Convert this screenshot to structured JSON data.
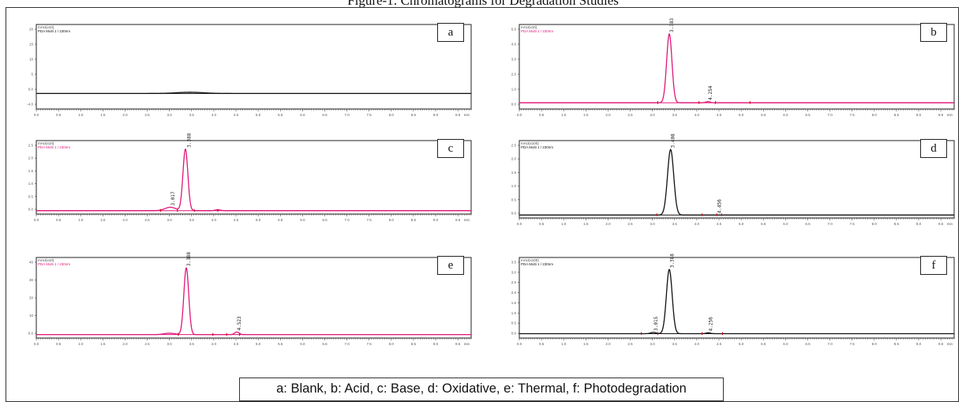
{
  "figure": {
    "title": "Figure-1: Chromatograms for Degradation Studies",
    "caption": "a: Blank, b: Acid, c: Base, d: Oxidative, e: Thermal, f: Photodegradation"
  },
  "colors": {
    "magenta": "#e0177a",
    "black": "#111111",
    "marker_red": "#d10a18"
  },
  "chart_data": [
    {
      "id": "a",
      "letter": "a",
      "type": "line",
      "color": "#111111",
      "x_label": "min",
      "xlim": [
        0,
        9.8
      ],
      "x_ticks": [
        "0.0",
        "0.5",
        "1.0",
        "1.5",
        "2.0",
        "2.5",
        "3.0",
        "3.5",
        "4.0",
        "4.5",
        "5.0",
        "5.5",
        "6.0",
        "6.5",
        "7.0",
        "7.5",
        "8.0",
        "8.5",
        "9.0",
        "9.5"
      ],
      "y_unit": "mAU(x10)",
      "detector": "PDA Multi 1 / 230nm",
      "ylim": [
        -4.5,
        20
      ],
      "y_ticks": [
        "20",
        "15",
        "10",
        "5",
        "0.0",
        "-4.0"
      ],
      "baseline": 0,
      "peaks": [
        {
          "rt": 3.46,
          "height": 0.35,
          "width": 0.3
        }
      ],
      "peak_labels": [],
      "markers": []
    },
    {
      "id": "b",
      "letter": "b",
      "type": "line",
      "color": "#e0177a",
      "x_label": "min",
      "xlim": [
        0,
        9.8
      ],
      "x_ticks": [
        "0.0",
        "0.5",
        "1.0",
        "1.5",
        "2.0",
        "2.5",
        "3.0",
        "3.5",
        "4.0",
        "4.5",
        "5.0",
        "5.5",
        "6.0",
        "6.5",
        "7.0",
        "7.5",
        "8.0",
        "8.5",
        "9.0",
        "9.5"
      ],
      "y_unit": "mAU(x10)",
      "detector": "PDA Multi 1 / 230nm",
      "ylim": [
        -0.4,
        5.0
      ],
      "y_ticks": [
        "5.0",
        "4.0",
        "3.0",
        "2.0",
        "1.0",
        "0.0"
      ],
      "baseline": 0,
      "peaks": [
        {
          "rt": 3.38,
          "height": 4.4,
          "width": 0.06
        },
        {
          "rt": 4.25,
          "height": 0.07,
          "width": 0.05
        }
      ],
      "peak_labels": [
        {
          "rt": 3.38,
          "text": "3.383"
        },
        {
          "rt": 4.25,
          "text": "4.254"
        }
      ],
      "markers": [
        3.12,
        4.05,
        4.42,
        5.2
      ]
    },
    {
      "id": "c",
      "letter": "c",
      "type": "line",
      "color": "#e0177a",
      "x_label": "min",
      "xlim": [
        0,
        9.8
      ],
      "x_ticks": [
        "0.0",
        "0.5",
        "1.0",
        "1.5",
        "2.0",
        "2.5",
        "3.0",
        "3.5",
        "4.0",
        "4.5",
        "5.0",
        "5.5",
        "6.0",
        "6.5",
        "7.0",
        "7.5",
        "8.0",
        "8.5",
        "9.0",
        "9.5"
      ],
      "y_unit": "mAU(x10)",
      "detector": "PDA Multi 1 / 230nm",
      "ylim": [
        -0.1,
        2.5
      ],
      "y_ticks": [
        "2.5",
        "2.0",
        "1.5",
        "1.0",
        "0.5",
        "0.0"
      ],
      "baseline": 0.02,
      "peaks": [
        {
          "rt": 3.02,
          "height": 0.12,
          "width": 0.12
        },
        {
          "rt": 3.36,
          "height": 2.18,
          "width": 0.055
        },
        {
          "rt": 4.09,
          "height": 0.03,
          "width": 0.06
        }
      ],
      "peak_labels": [
        {
          "rt": 3.02,
          "text": "3.017"
        },
        {
          "rt": 3.39,
          "text": "3.388"
        }
      ],
      "markers": [
        2.8,
        3.18,
        3.56,
        4.09
      ]
    },
    {
      "id": "d",
      "letter": "d",
      "type": "line",
      "color": "#111111",
      "x_label": "min",
      "xlim": [
        0,
        9.8
      ],
      "x_ticks": [
        "0.0",
        "0.5",
        "1.0",
        "1.5",
        "2.0",
        "2.5",
        "3.0",
        "3.5",
        "4.0",
        "4.5",
        "5.0",
        "5.5",
        "6.0",
        "6.5",
        "7.0",
        "7.5",
        "8.0",
        "8.5",
        "9.0",
        "9.5"
      ],
      "y_unit": "mAU(x100)",
      "detector": "PDA Multi 1 / 230nm",
      "ylim": [
        -0.1,
        2.5
      ],
      "y_ticks": [
        "2.5",
        "2.0",
        "1.5",
        "1.0",
        "0.5",
        "0.0"
      ],
      "baseline": 0,
      "peaks": [
        {
          "rt": 3.41,
          "height": 2.2,
          "width": 0.07
        }
      ],
      "peak_labels": [
        {
          "rt": 3.41,
          "text": "3.408"
        },
        {
          "rt": 4.46,
          "text": "4.456"
        }
      ],
      "markers": [
        3.1,
        4.12,
        4.45,
        4.56
      ]
    },
    {
      "id": "e",
      "letter": "e",
      "type": "line",
      "color": "#e0177a",
      "x_label": "min",
      "xlim": [
        0,
        9.8
      ],
      "x_ticks": [
        "0.0",
        "0.5",
        "1.0",
        "1.5",
        "2.0",
        "2.5",
        "3.0",
        "3.5",
        "4.0",
        "4.5",
        "5.0",
        "5.5",
        "6.0",
        "6.5",
        "7.0",
        "7.5",
        "8.0",
        "8.5",
        "9.0",
        "9.5"
      ],
      "y_unit": "mAU(x10)",
      "detector": "PDA Multi 1 / 230nm",
      "ylim": [
        -2,
        45
      ],
      "y_ticks": [
        "40",
        "30",
        "20",
        "10",
        "0.0"
      ],
      "baseline": 0,
      "peaks": [
        {
          "rt": 3.0,
          "height": 0.8,
          "width": 0.12
        },
        {
          "rt": 3.38,
          "height": 39,
          "width": 0.055
        },
        {
          "rt": 4.52,
          "height": 1.5,
          "width": 0.05
        }
      ],
      "peak_labels": [
        {
          "rt": 3.38,
          "text": "3.388"
        },
        {
          "rt": 4.52,
          "text": "4.523"
        }
      ],
      "markers": [
        3.2,
        3.98,
        4.29,
        4.58
      ]
    },
    {
      "id": "f",
      "letter": "f",
      "type": "line",
      "color": "#111111",
      "x_label": "min",
      "xlim": [
        0,
        9.8
      ],
      "x_ticks": [
        "0.0",
        "0.5",
        "1.0",
        "1.5",
        "2.0",
        "2.5",
        "3.0",
        "3.5",
        "4.0",
        "4.5",
        "5.0",
        "5.5",
        "6.0",
        "6.5",
        "7.0",
        "7.5",
        "8.0",
        "8.5",
        "9.0",
        "9.5"
      ],
      "y_unit": "mAU(x100)",
      "detector": "PDA Multi 1 / 230nm",
      "ylim": [
        -0.2,
        3.5
      ],
      "y_ticks": [
        "3.5",
        "3.0",
        "2.5",
        "2.0",
        "1.5",
        "1.0",
        "0.5",
        "0.0"
      ],
      "baseline": 0,
      "peaks": [
        {
          "rt": 3.02,
          "height": 0.06,
          "width": 0.06
        },
        {
          "rt": 3.38,
          "height": 2.95,
          "width": 0.065
        },
        {
          "rt": 4.26,
          "height": 0.04,
          "width": 0.05
        }
      ],
      "peak_labels": [
        {
          "rt": 3.02,
          "text": "3.015"
        },
        {
          "rt": 3.388,
          "text": "3.388"
        },
        {
          "rt": 4.26,
          "text": "4.256"
        }
      ],
      "markers": [
        2.75,
        3.12,
        4.12,
        4.58
      ]
    }
  ]
}
